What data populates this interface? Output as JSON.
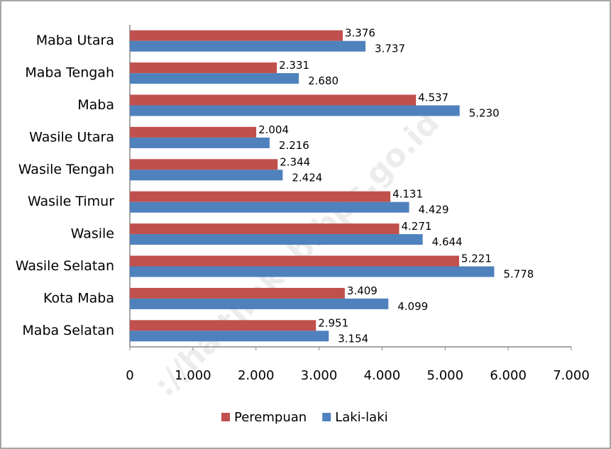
{
  "chart_data": {
    "type": "bar",
    "orientation": "horizontal",
    "watermark": "://haltimkab.bps.go.id",
    "categories": [
      "Maba Utara",
      "Maba Tengah",
      "Maba",
      "Wasile Utara",
      "Wasile Tengah",
      "Wasile Timur",
      "Wasile",
      "Wasile Selatan",
      "Kota Maba",
      "Maba Selatan"
    ],
    "series": [
      {
        "name": "Perempuan",
        "color": "#c0504d",
        "values": [
          3376,
          2331,
          4537,
          2004,
          2344,
          4131,
          4271,
          5221,
          3409,
          2951
        ],
        "value_labels": [
          "3.376",
          "2.331",
          "4.537",
          "2.004",
          "2.344",
          "4.131",
          "4.271",
          "5.221",
          "3.409",
          "2.951"
        ]
      },
      {
        "name": "Laki-laki",
        "color": "#4f81bd",
        "values": [
          3737,
          2680,
          5230,
          2216,
          2424,
          4429,
          4644,
          5778,
          4099,
          3154
        ],
        "value_labels": [
          "3.737",
          "2.680",
          "5.230",
          "2.216",
          "2.424",
          "4.429",
          "4.644",
          "5.778",
          "4.099",
          "3.154"
        ]
      }
    ],
    "xlim": [
      0,
      7000
    ],
    "xticks": [
      0,
      {
        "value": 1000,
        "label": "1.000"
      },
      {
        "value": 2000,
        "label": "2.000"
      },
      {
        "value": 3000,
        "label": "3.000"
      },
      {
        "value": 4000,
        "label": "4.000"
      },
      {
        "value": 5000,
        "label": "5.000"
      },
      {
        "value": 6000,
        "label": "6.000"
      },
      {
        "value": 7000,
        "label": "7.000"
      }
    ],
    "legend": "bottom"
  }
}
